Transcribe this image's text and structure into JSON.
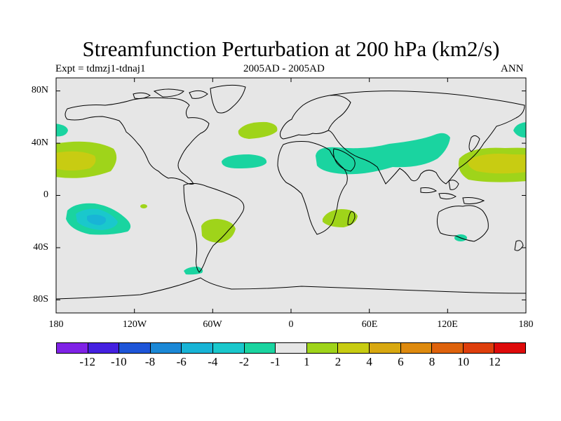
{
  "title": "Streamfunction Perturbation at 200 hPa (km2/s)",
  "subtitle_left": "Expt = tdmzj1-tdnaj1",
  "subtitle_center": "2005AD - 2005AD",
  "subtitle_right": "ANN",
  "lat_ticks": [
    "80N",
    "40N",
    "0",
    "40S",
    "80S"
  ],
  "lon_ticks": [
    "180",
    "120W",
    "60W",
    "0",
    "60E",
    "120E",
    "180"
  ],
  "colorbar": {
    "colors": [
      "#7f22e6",
      "#4420e0",
      "#1e55d8",
      "#1b88d6",
      "#18b4d6",
      "#1ac8cc",
      "#1ad4a0",
      "#e6e6e6",
      "#9fd41a",
      "#c8cc12",
      "#d8a810",
      "#de8a0e",
      "#de620c",
      "#de3e0c",
      "#de0a0a"
    ],
    "labels": [
      "-12",
      "-10",
      "-8",
      "-6",
      "-4",
      "-2",
      "-1",
      "1",
      "2",
      "4",
      "6",
      "8",
      "10",
      "12"
    ]
  },
  "chart_data": {
    "type": "contour-map",
    "variable": "Streamfunction Perturbation at 200 hPa",
    "units": "km2/s",
    "levels": [
      -12,
      -10,
      -8,
      -6,
      -4,
      -2,
      -1,
      1,
      2,
      4,
      6,
      8,
      10,
      12
    ],
    "background": "#e6e6e6",
    "features": [
      {
        "name": "NE Pacific anticyclone",
        "value_range": [
          2,
          6
        ],
        "lon": [
          -180,
          -140
        ],
        "lat": [
          18,
          40
        ]
      },
      {
        "name": "NW Pacific anticyclone",
        "value_range": [
          2,
          6
        ],
        "lon": [
          120,
          180
        ],
        "lat": [
          15,
          42
        ]
      },
      {
        "name": "North Atlantic",
        "value_range": [
          1,
          2
        ],
        "lon": [
          -40,
          -10
        ],
        "lat": [
          42,
          55
        ]
      },
      {
        "name": "Tropical Atlantic",
        "value_range": [
          -2,
          -1
        ],
        "lon": [
          -50,
          -20
        ],
        "lat": [
          20,
          30
        ]
      },
      {
        "name": "Middle East to China band",
        "value_range": [
          -2,
          -1
        ],
        "lon": [
          20,
          120
        ],
        "lat": [
          15,
          48
        ]
      },
      {
        "name": "South Pacific",
        "value_range": [
          -6,
          -1
        ],
        "lon": [
          -170,
          -115
        ],
        "lat": [
          -35,
          -8
        ]
      },
      {
        "name": "South America",
        "value_range": [
          1,
          2
        ],
        "lon": [
          -68,
          -40
        ],
        "lat": [
          -45,
          -15
        ]
      },
      {
        "name": "Southern Africa",
        "value_range": [
          1,
          2
        ],
        "lon": [
          25,
          50
        ],
        "lat": [
          -23,
          -10
        ]
      }
    ]
  }
}
